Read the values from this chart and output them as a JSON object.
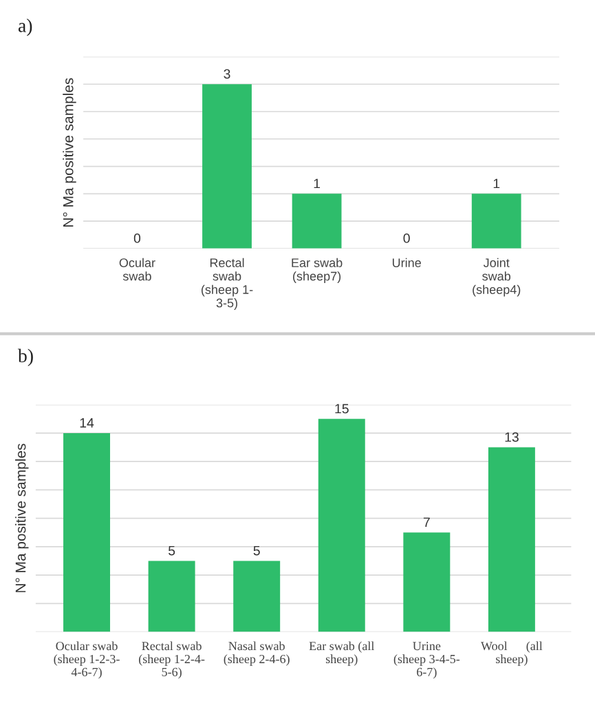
{
  "chart_data": [
    {
      "type": "bar",
      "title": "a)",
      "ylabel": "N° Ma positive samples",
      "categories": [
        "Ocular\nswab",
        "Rectal\nswab\n(sheep 1-\n3-5)",
        "Ear swab\n(sheep7)",
        "Urine",
        "Joint\nswab\n(sheep4)"
      ],
      "values": [
        0,
        3,
        1,
        0,
        1
      ],
      "color": "#2ebd6b",
      "ylim": [
        0,
        3.5
      ],
      "yticks": [
        {
          "value": 0,
          "label": null
        },
        {
          "value": 0.5,
          "label": null
        },
        {
          "value": 1,
          "label": null
        },
        {
          "value": 1.5,
          "label": null
        },
        {
          "value": 2,
          "label": null
        },
        {
          "value": 2.5,
          "label": null
        },
        {
          "value": 3,
          "label": null
        },
        {
          "value": 3.5,
          "label": null
        }
      ],
      "grid": "y",
      "data_labels": true
    },
    {
      "type": "bar",
      "title": "b)",
      "ylabel": "N° Ma positive samples",
      "categories": [
        "Ocular swab\n(sheep 1-2-3-\n4-6-7)",
        "Rectal swab\n(sheep 1-2-4-\n5-6)",
        "Nasal swab\n(sheep 2-4-6)",
        "Ear swab (all\nsheep)",
        "Urine\n(sheep 3-4-5-\n6-7)",
        "Wool      (all\nsheep)"
      ],
      "values": [
        14,
        5,
        5,
        15,
        7,
        13
      ],
      "color": "#2ebd6b",
      "ylim": [
        0,
        16
      ],
      "yticks": [
        {
          "value": 0,
          "label": null
        },
        {
          "value": 2,
          "label": null
        },
        {
          "value": 4,
          "label": null
        },
        {
          "value": 6,
          "label": null
        },
        {
          "value": 8,
          "label": null
        },
        {
          "value": 10,
          "label": null
        },
        {
          "value": 12,
          "label": null
        },
        {
          "value": 14,
          "label": null
        },
        {
          "value": 16,
          "label": null
        }
      ],
      "grid": "y",
      "data_labels": true
    }
  ]
}
